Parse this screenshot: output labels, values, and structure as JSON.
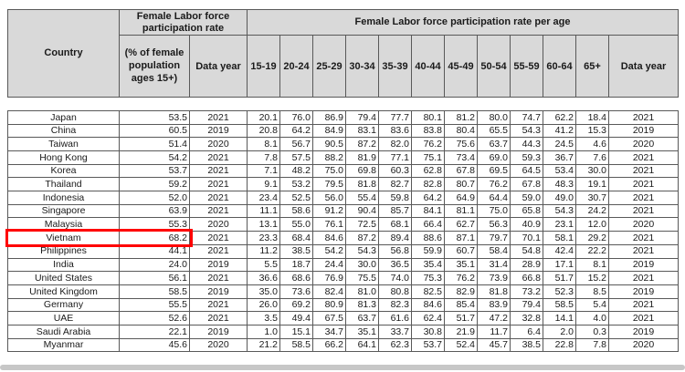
{
  "table": {
    "corner_label": "Country",
    "group1_label": "Female Labor force participation rate",
    "group2_label": "Female Labor force participation rate per age",
    "rate_label": "(% of female population ages 15+)",
    "data_year_label": "Data year",
    "age_columns": [
      "15-19",
      "20-24",
      "25-29",
      "30-34",
      "35-39",
      "40-44",
      "45-49",
      "50-54",
      "55-59",
      "60-64",
      "65+"
    ],
    "header_bg": "#d9d9d9",
    "highlight_color": "#ff0000",
    "rows": [
      {
        "country": "Japan",
        "rate": "53.5",
        "year": "2021",
        "ages": [
          "20.1",
          "76.0",
          "86.9",
          "79.4",
          "77.7",
          "80.1",
          "81.2",
          "80.0",
          "74.7",
          "62.2",
          "18.4"
        ],
        "year2": "2021",
        "highlighted": false
      },
      {
        "country": "China",
        "rate": "60.5",
        "year": "2019",
        "ages": [
          "20.8",
          "64.2",
          "84.9",
          "83.1",
          "83.6",
          "83.8",
          "80.4",
          "65.5",
          "54.3",
          "41.2",
          "15.3"
        ],
        "year2": "2019",
        "highlighted": false
      },
      {
        "country": "Taiwan",
        "rate": "51.4",
        "year": "2020",
        "ages": [
          "8.1",
          "56.7",
          "90.5",
          "87.2",
          "82.0",
          "76.2",
          "75.6",
          "63.7",
          "44.3",
          "24.5",
          "4.6"
        ],
        "year2": "2020",
        "highlighted": false
      },
      {
        "country": "Hong Kong",
        "rate": "54.2",
        "year": "2021",
        "ages": [
          "7.8",
          "57.5",
          "88.2",
          "81.9",
          "77.1",
          "75.1",
          "73.4",
          "69.0",
          "59.3",
          "36.7",
          "7.6"
        ],
        "year2": "2021",
        "highlighted": false
      },
      {
        "country": "Korea",
        "rate": "53.7",
        "year": "2021",
        "ages": [
          "7.1",
          "48.2",
          "75.0",
          "69.8",
          "60.3",
          "62.8",
          "67.8",
          "69.5",
          "64.5",
          "53.4",
          "30.0"
        ],
        "year2": "2021",
        "highlighted": false
      },
      {
        "country": "Thailand",
        "rate": "59.2",
        "year": "2021",
        "ages": [
          "9.1",
          "53.2",
          "79.5",
          "81.8",
          "82.7",
          "82.8",
          "80.7",
          "76.2",
          "67.8",
          "48.3",
          "19.1"
        ],
        "year2": "2021",
        "highlighted": false
      },
      {
        "country": "Indonesia",
        "rate": "52.0",
        "year": "2021",
        "ages": [
          "23.4",
          "52.5",
          "56.0",
          "55.4",
          "59.8",
          "64.2",
          "64.9",
          "64.4",
          "59.0",
          "49.0",
          "30.7"
        ],
        "year2": "2021",
        "highlighted": false
      },
      {
        "country": "Singapore",
        "rate": "63.9",
        "year": "2021",
        "ages": [
          "11.1",
          "58.6",
          "91.2",
          "90.4",
          "85.7",
          "84.1",
          "81.1",
          "75.0",
          "65.8",
          "54.3",
          "24.2"
        ],
        "year2": "2021",
        "highlighted": false
      },
      {
        "country": "Malaysia",
        "rate": "55.3",
        "year": "2020",
        "ages": [
          "13.1",
          "55.0",
          "76.1",
          "72.5",
          "68.1",
          "66.4",
          "62.7",
          "56.3",
          "40.9",
          "23.1",
          "12.0"
        ],
        "year2": "2020",
        "highlighted": false
      },
      {
        "country": "Vietnam",
        "rate": "68.2",
        "year": "2021",
        "ages": [
          "23.3",
          "68.4",
          "84.6",
          "87.2",
          "89.4",
          "88.6",
          "87.1",
          "79.7",
          "70.1",
          "58.1",
          "29.2"
        ],
        "year2": "2021",
        "highlighted": true
      },
      {
        "country": "Philippines",
        "rate": "44.1",
        "year": "2021",
        "ages": [
          "11.2",
          "38.5",
          "54.2",
          "54.3",
          "56.8",
          "59.9",
          "60.7",
          "58.4",
          "54.8",
          "42.4",
          "22.2"
        ],
        "year2": "2021",
        "highlighted": false
      },
      {
        "country": "India",
        "rate": "24.0",
        "year": "2019",
        "ages": [
          "5.5",
          "18.7",
          "24.4",
          "30.0",
          "36.5",
          "35.4",
          "35.1",
          "31.4",
          "28.9",
          "17.1",
          "8.1"
        ],
        "year2": "2019",
        "highlighted": false
      },
      {
        "country": "United States",
        "rate": "56.1",
        "year": "2021",
        "ages": [
          "36.6",
          "68.6",
          "76.9",
          "75.5",
          "74.0",
          "75.3",
          "76.2",
          "73.9",
          "66.8",
          "51.7",
          "15.2"
        ],
        "year2": "2021",
        "highlighted": false
      },
      {
        "country": "United Kingdom",
        "rate": "58.5",
        "year": "2019",
        "ages": [
          "35.0",
          "73.6",
          "82.4",
          "81.0",
          "80.8",
          "82.5",
          "82.9",
          "81.8",
          "73.2",
          "52.3",
          "8.5"
        ],
        "year2": "2019",
        "highlighted": false
      },
      {
        "country": "Germany",
        "rate": "55.5",
        "year": "2021",
        "ages": [
          "26.0",
          "69.2",
          "80.9",
          "81.3",
          "82.3",
          "84.6",
          "85.4",
          "83.9",
          "79.4",
          "58.5",
          "5.4"
        ],
        "year2": "2021",
        "highlighted": false
      },
      {
        "country": "UAE",
        "rate": "52.6",
        "year": "2021",
        "ages": [
          "3.5",
          "49.4",
          "67.5",
          "63.7",
          "61.6",
          "62.4",
          "51.7",
          "47.2",
          "32.8",
          "14.1",
          "4.0"
        ],
        "year2": "2021",
        "highlighted": false
      },
      {
        "country": "Saudi Arabia",
        "rate": "22.1",
        "year": "2019",
        "ages": [
          "1.0",
          "15.1",
          "34.7",
          "35.1",
          "33.7",
          "30.8",
          "21.9",
          "11.7",
          "6.4",
          "2.0",
          "0.3"
        ],
        "year2": "2019",
        "highlighted": false
      },
      {
        "country": "Myanmar",
        "rate": "45.6",
        "year": "2020",
        "ages": [
          "21.2",
          "58.5",
          "66.2",
          "64.1",
          "62.3",
          "53.7",
          "52.4",
          "45.7",
          "38.5",
          "22.8",
          "7.8"
        ],
        "year2": "2020",
        "highlighted": false
      }
    ]
  }
}
